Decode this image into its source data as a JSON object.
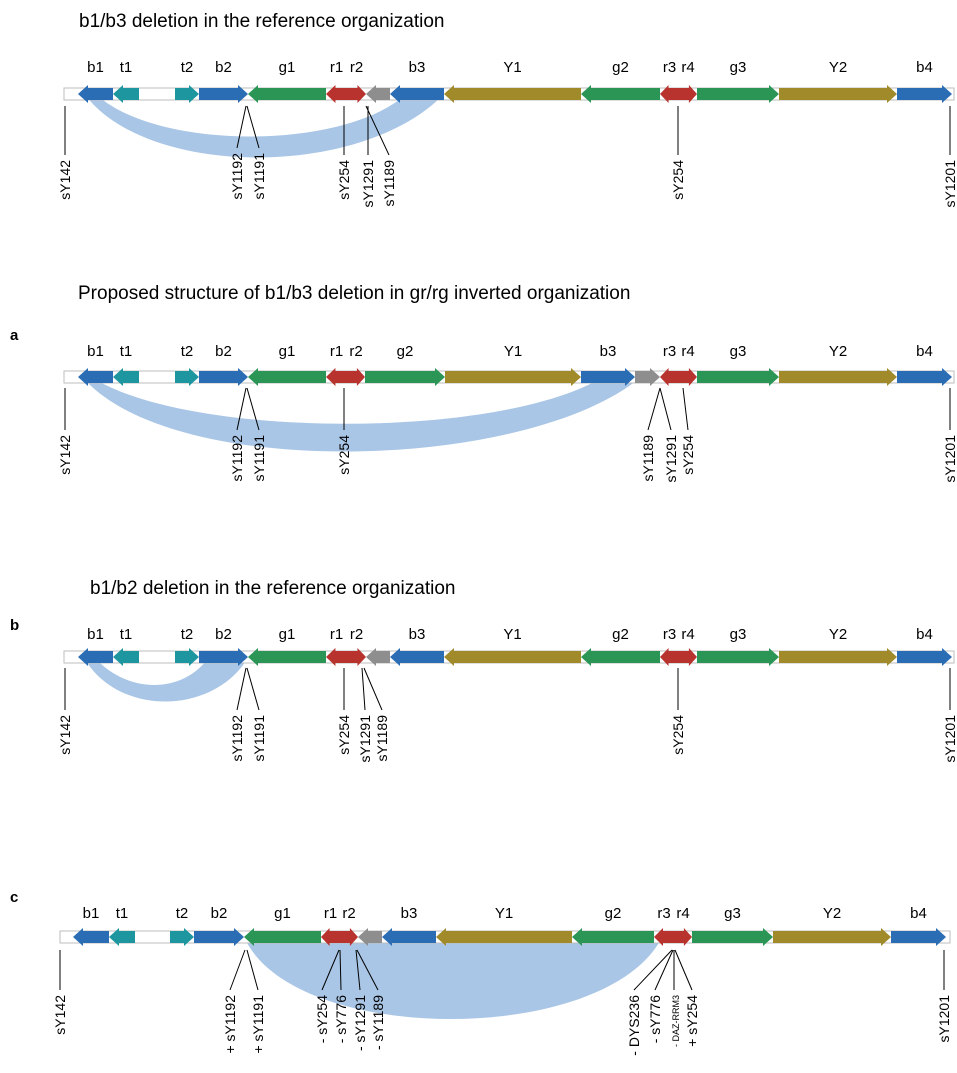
{
  "colors": {
    "blue": "#2a6db5",
    "teal": "#1e96a0",
    "green": "#2a9555",
    "red": "#b8332e",
    "gray": "#8e8e8e",
    "olive": "#a08a2a",
    "deletion_fill": "#a9c6e6",
    "backbone_stroke": "#bdbdbd"
  },
  "panels": [
    {
      "letter": "",
      "title": "b1/b3 deletion in the reference organization",
      "segments": [
        {
          "label": "b1",
          "color": "blue",
          "dir": "left"
        },
        {
          "label": "t1",
          "color": "teal",
          "dir": "left"
        },
        {
          "label": "",
          "color": "none",
          "dir": "none"
        },
        {
          "label": "t2",
          "color": "teal",
          "dir": "right"
        },
        {
          "label": "b2",
          "color": "blue",
          "dir": "right"
        },
        {
          "label": "g1",
          "color": "green",
          "dir": "left"
        },
        {
          "label": "r1",
          "color": "red",
          "dir": "left"
        },
        {
          "label": "r2",
          "color": "red",
          "dir": "right"
        },
        {
          "label": "",
          "color": "gray",
          "dir": "left"
        },
        {
          "label": "b3",
          "color": "blue",
          "dir": "left"
        },
        {
          "label": "Y1",
          "color": "olive",
          "dir": "left"
        },
        {
          "label": "g2",
          "color": "green",
          "dir": "left"
        },
        {
          "label": "r3",
          "color": "red",
          "dir": "left"
        },
        {
          "label": "r4",
          "color": "red",
          "dir": "right"
        },
        {
          "label": "g3",
          "color": "green",
          "dir": "right"
        },
        {
          "label": "Y2",
          "color": "olive",
          "dir": "right"
        },
        {
          "label": "b4",
          "color": "blue",
          "dir": "right"
        }
      ],
      "markers": [
        {
          "label": "sY142",
          "prefix": ""
        },
        {
          "label": "sY1192",
          "prefix": ""
        },
        {
          "label": "sY1191",
          "prefix": ""
        },
        {
          "label": "sY254",
          "prefix": ""
        },
        {
          "label": "sY1291",
          "prefix": ""
        },
        {
          "label": "sY1189",
          "prefix": ""
        },
        {
          "label": "sY254",
          "prefix": ""
        },
        {
          "label": "sY1201",
          "prefix": ""
        }
      ]
    },
    {
      "letter": "a",
      "title": "Proposed structure of b1/b3 deletion in gr/rg inverted organization",
      "segments": [
        {
          "label": "b1",
          "color": "blue",
          "dir": "left"
        },
        {
          "label": "t1",
          "color": "teal",
          "dir": "left"
        },
        {
          "label": "",
          "color": "none",
          "dir": "none"
        },
        {
          "label": "t2",
          "color": "teal",
          "dir": "right"
        },
        {
          "label": "b2",
          "color": "blue",
          "dir": "right"
        },
        {
          "label": "g1",
          "color": "green",
          "dir": "left"
        },
        {
          "label": "r1",
          "color": "red",
          "dir": "left"
        },
        {
          "label": "r2",
          "color": "red",
          "dir": "right"
        },
        {
          "label": "g2",
          "color": "green",
          "dir": "right"
        },
        {
          "label": "Y1",
          "color": "olive",
          "dir": "right"
        },
        {
          "label": "b3",
          "color": "blue",
          "dir": "right"
        },
        {
          "label": "",
          "color": "gray",
          "dir": "right"
        },
        {
          "label": "r3",
          "color": "red",
          "dir": "left"
        },
        {
          "label": "r4",
          "color": "red",
          "dir": "right"
        },
        {
          "label": "g3",
          "color": "green",
          "dir": "right"
        },
        {
          "label": "Y2",
          "color": "olive",
          "dir": "right"
        },
        {
          "label": "b4",
          "color": "blue",
          "dir": "right"
        }
      ],
      "markers": [
        {
          "label": "sY142",
          "prefix": ""
        },
        {
          "label": "sY1192",
          "prefix": ""
        },
        {
          "label": "sY1191",
          "prefix": ""
        },
        {
          "label": "sY254",
          "prefix": ""
        },
        {
          "label": "sY1189",
          "prefix": ""
        },
        {
          "label": "sY1291",
          "prefix": ""
        },
        {
          "label": "sY254",
          "prefix": ""
        },
        {
          "label": "sY1201",
          "prefix": ""
        }
      ]
    },
    {
      "letter": "b",
      "title": "b1/b2 deletion in the reference organization",
      "segments": [
        {
          "label": "b1",
          "color": "blue",
          "dir": "left"
        },
        {
          "label": "t1",
          "color": "teal",
          "dir": "left"
        },
        {
          "label": "",
          "color": "none",
          "dir": "none"
        },
        {
          "label": "t2",
          "color": "teal",
          "dir": "right"
        },
        {
          "label": "b2",
          "color": "blue",
          "dir": "right"
        },
        {
          "label": "g1",
          "color": "green",
          "dir": "left"
        },
        {
          "label": "r1",
          "color": "red",
          "dir": "left"
        },
        {
          "label": "r2",
          "color": "red",
          "dir": "right"
        },
        {
          "label": "",
          "color": "gray",
          "dir": "left"
        },
        {
          "label": "b3",
          "color": "blue",
          "dir": "left"
        },
        {
          "label": "Y1",
          "color": "olive",
          "dir": "left"
        },
        {
          "label": "g2",
          "color": "green",
          "dir": "left"
        },
        {
          "label": "r3",
          "color": "red",
          "dir": "left"
        },
        {
          "label": "r4",
          "color": "red",
          "dir": "right"
        },
        {
          "label": "g3",
          "color": "green",
          "dir": "right"
        },
        {
          "label": "Y2",
          "color": "olive",
          "dir": "right"
        },
        {
          "label": "b4",
          "color": "blue",
          "dir": "right"
        }
      ],
      "markers": [
        {
          "label": "sY142",
          "prefix": ""
        },
        {
          "label": "sY1192",
          "prefix": ""
        },
        {
          "label": "sY1191",
          "prefix": ""
        },
        {
          "label": "sY254",
          "prefix": ""
        },
        {
          "label": "sY1291",
          "prefix": ""
        },
        {
          "label": "sY1189",
          "prefix": ""
        },
        {
          "label": "sY254",
          "prefix": ""
        },
        {
          "label": "sY1201",
          "prefix": ""
        }
      ]
    },
    {
      "letter": "c",
      "title": "",
      "segments": [
        {
          "label": "b1",
          "color": "blue",
          "dir": "left"
        },
        {
          "label": "t1",
          "color": "teal",
          "dir": "left"
        },
        {
          "label": "",
          "color": "none",
          "dir": "none"
        },
        {
          "label": "t2",
          "color": "teal",
          "dir": "right"
        },
        {
          "label": "b2",
          "color": "blue",
          "dir": "right"
        },
        {
          "label": "g1",
          "color": "green",
          "dir": "left"
        },
        {
          "label": "r1",
          "color": "red",
          "dir": "left"
        },
        {
          "label": "r2",
          "color": "red",
          "dir": "right"
        },
        {
          "label": "",
          "color": "gray",
          "dir": "left"
        },
        {
          "label": "b3",
          "color": "blue",
          "dir": "left"
        },
        {
          "label": "Y1",
          "color": "olive",
          "dir": "left"
        },
        {
          "label": "g2",
          "color": "green",
          "dir": "left"
        },
        {
          "label": "r3",
          "color": "red",
          "dir": "left"
        },
        {
          "label": "r4",
          "color": "red",
          "dir": "right"
        },
        {
          "label": "g3",
          "color": "green",
          "dir": "right"
        },
        {
          "label": "Y2",
          "color": "olive",
          "dir": "right"
        },
        {
          "label": "b4",
          "color": "blue",
          "dir": "right"
        }
      ],
      "markers": [
        {
          "label": "sY142",
          "prefix": ""
        },
        {
          "label": "sY1192",
          "prefix": "+"
        },
        {
          "label": "sY1191",
          "prefix": "+"
        },
        {
          "label": "sY254",
          "prefix": "-"
        },
        {
          "label": "sY776",
          "prefix": "-"
        },
        {
          "label": "sY1291",
          "prefix": "-"
        },
        {
          "label": "sY1189",
          "prefix": "-"
        },
        {
          "label": "DYS236",
          "prefix": "-"
        },
        {
          "label": "sY776",
          "prefix": "-"
        },
        {
          "label": "DAZ-RRM3",
          "prefix": "-"
        },
        {
          "label": "sY254",
          "prefix": "+"
        },
        {
          "label": "sY1201",
          "prefix": ""
        }
      ]
    }
  ]
}
